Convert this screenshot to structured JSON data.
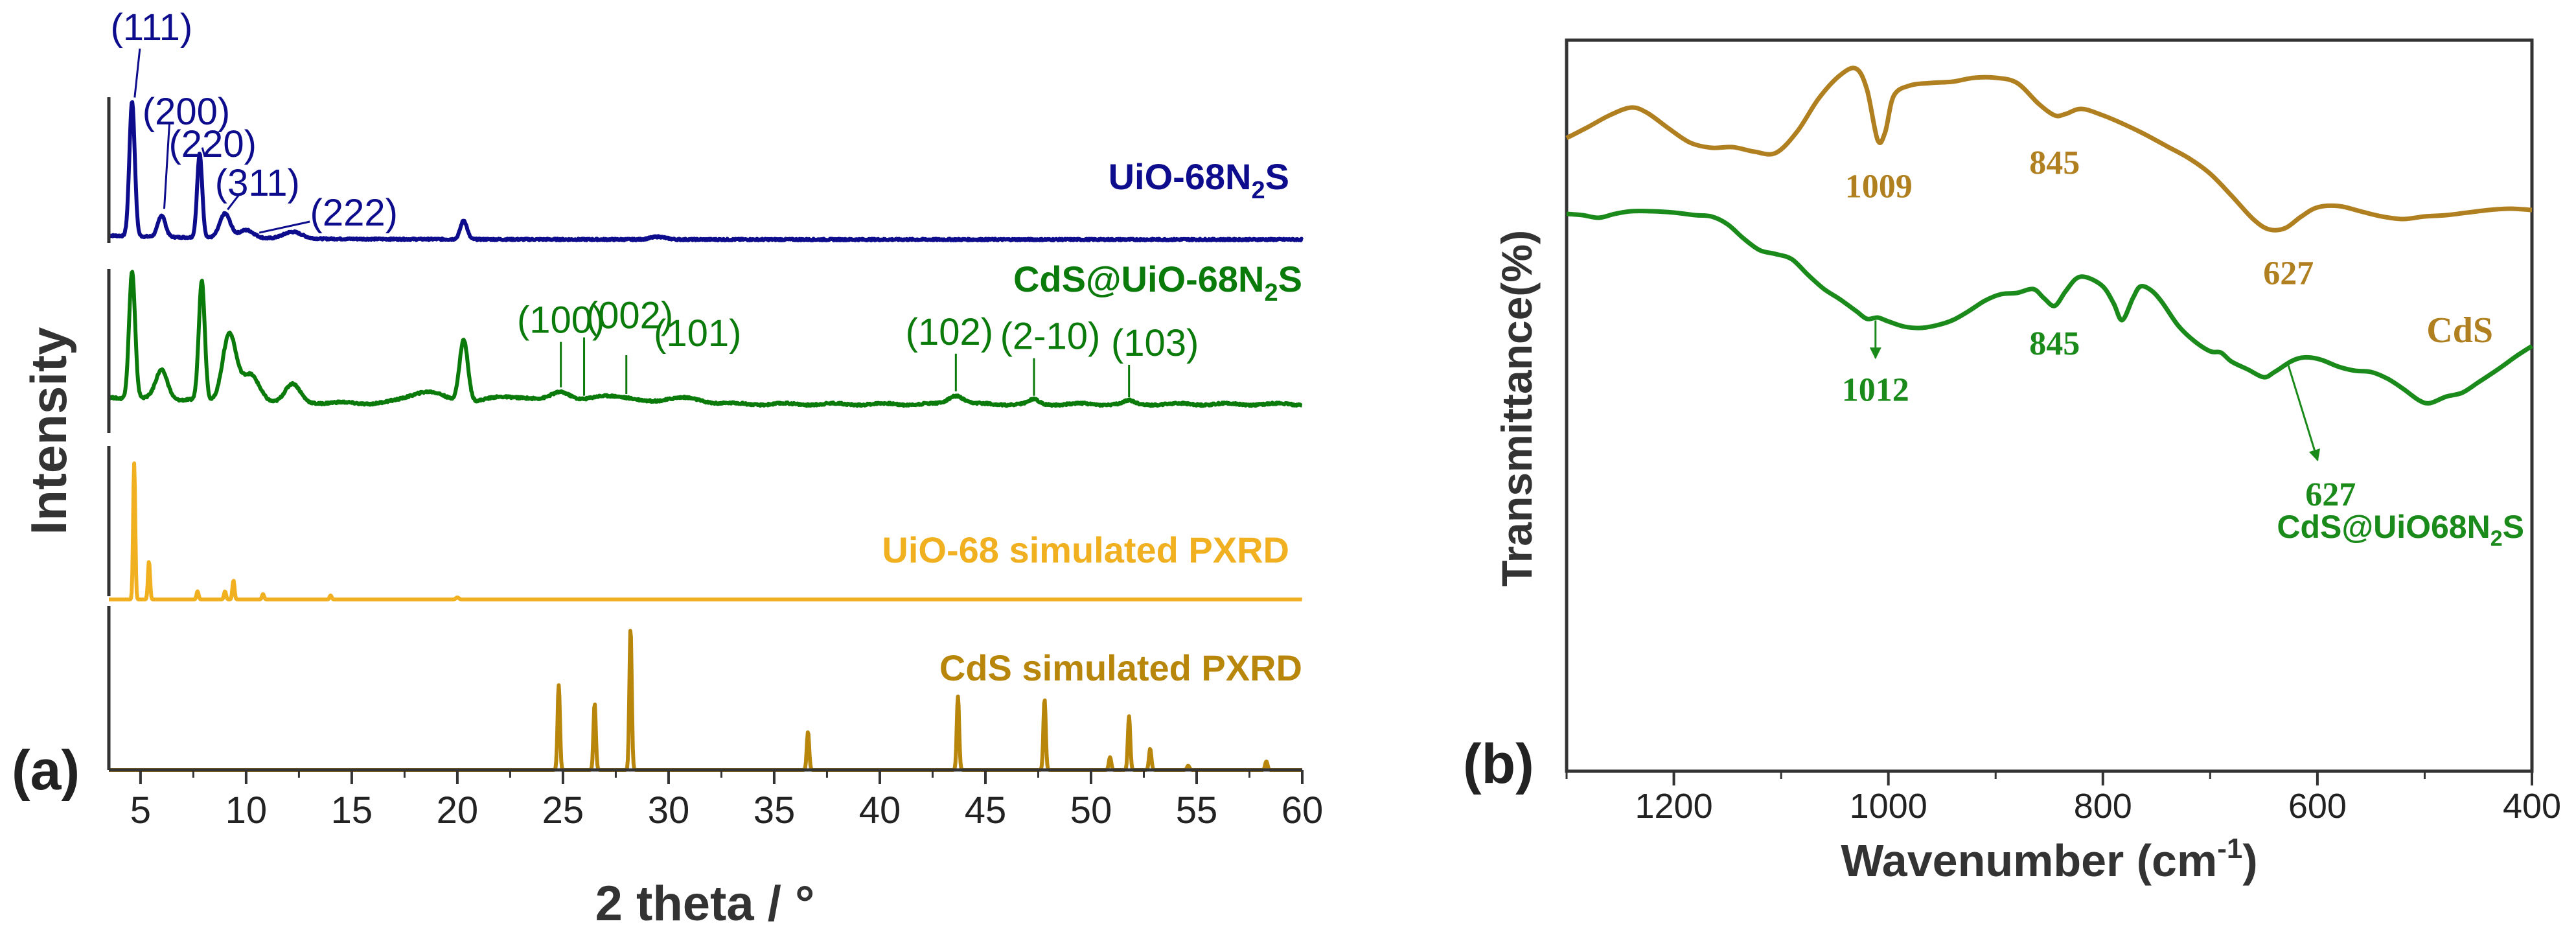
{
  "chart_data": [
    {
      "panel": "(a)",
      "type": "line",
      "xlabel": "2 theta / °",
      "ylabel": "Intensity",
      "xlim": [
        3.5,
        60
      ],
      "xticks": [
        5,
        10,
        15,
        20,
        25,
        30,
        35,
        40,
        45,
        50,
        55,
        60
      ],
      "xtick_labels": [
        "5",
        "10",
        "15",
        "20",
        "25",
        "30",
        "35",
        "40",
        "45",
        "50",
        "55",
        "60"
      ],
      "series": [
        {
          "name": "UiO-68N₂S",
          "label_main": "UiO-68N",
          "label_sub": "2",
          "label_tail": "S",
          "color": "#0c0c8c",
          "baseline": 0.05,
          "peaks": [
            [
              4.6,
              1.0,
              0.18
            ],
            [
              6.0,
              0.16,
              0.25
            ],
            [
              7.8,
              0.62,
              0.17
            ],
            [
              9.0,
              0.18,
              0.35
            ],
            [
              10.0,
              0.06,
              0.5
            ],
            [
              12.2,
              0.05,
              0.6
            ],
            [
              20.3,
              0.14,
              0.22
            ],
            [
              29.5,
              0.02,
              0.5
            ]
          ],
          "annotations": [
            {
              "text": "(111)",
              "x": 4.6
            },
            {
              "text": "(200)",
              "x": 6.0
            },
            {
              "text": "(220)",
              "x": 7.8
            },
            {
              "text": "(311)",
              "x": 9.0
            },
            {
              "text": "(222)",
              "x": 10.5
            }
          ]
        },
        {
          "name": "CdS@UiO-68N₂S",
          "label_main": "CdS@UiO-68N",
          "label_sub": "2",
          "label_tail": "S",
          "color": "#0a7a0a",
          "baseline": 0.08,
          "peaks": [
            [
              4.6,
              0.85,
              0.2
            ],
            [
              6.0,
              0.2,
              0.4
            ],
            [
              7.9,
              0.8,
              0.2
            ],
            [
              9.2,
              0.45,
              0.45
            ],
            [
              10.2,
              0.18,
              0.6
            ],
            [
              12.2,
              0.12,
              0.5
            ],
            [
              18.5,
              0.08,
              1.2
            ],
            [
              20.3,
              0.42,
              0.28
            ],
            [
              22.5,
              0.05,
              1.5
            ],
            [
              24.9,
              0.08,
              0.7
            ],
            [
              27.2,
              0.06,
              1.2
            ],
            [
              30.5,
              0.04,
              1.5
            ],
            [
              43.6,
              0.06,
              0.5
            ],
            [
              47.3,
              0.03,
              0.3
            ],
            [
              51.8,
              0.02,
              0.3
            ]
          ],
          "annotations": [
            {
              "text": "(100)",
              "x": 24.9
            },
            {
              "text": "(002)",
              "x": 26.0
            },
            {
              "text": "(101)",
              "x": 28.0
            },
            {
              "text": "(102)",
              "x": 43.6
            },
            {
              "text": "(2-10)",
              "x": 47.3
            },
            {
              "text": "(103)",
              "x": 51.8
            }
          ]
        },
        {
          "name": "UiO-68 simulated PXRD",
          "label_main": "UiO-68 simulated PXRD",
          "color": "#f0b020",
          "baseline": 0.0,
          "peaks": [
            [
              4.7,
              1.0,
              0.07
            ],
            [
              5.4,
              0.28,
              0.07
            ],
            [
              7.7,
              0.06,
              0.07
            ],
            [
              9.0,
              0.06,
              0.07
            ],
            [
              9.4,
              0.14,
              0.07
            ],
            [
              10.8,
              0.04,
              0.07
            ],
            [
              14.0,
              0.03,
              0.07
            ],
            [
              20.0,
              0.015,
              0.1
            ]
          ]
        },
        {
          "name": "CdS simulated PXRD",
          "label_main": "CdS simulated PXRD",
          "color": "#b8860b",
          "baseline": 0.0,
          "peaks": [
            [
              24.8,
              0.6,
              0.08
            ],
            [
              26.5,
              0.47,
              0.08
            ],
            [
              28.2,
              1.0,
              0.08
            ],
            [
              36.6,
              0.27,
              0.08
            ],
            [
              43.7,
              0.52,
              0.08
            ],
            [
              47.8,
              0.5,
              0.08
            ],
            [
              50.9,
              0.09,
              0.08
            ],
            [
              51.8,
              0.38,
              0.08
            ],
            [
              52.8,
              0.15,
              0.08
            ],
            [
              54.6,
              0.03,
              0.08
            ],
            [
              58.3,
              0.06,
              0.08
            ]
          ]
        }
      ]
    },
    {
      "panel": "(b)",
      "type": "line",
      "xlabel_main": "Wavenumber (cm",
      "xlabel_sup": "-1",
      "xlabel_tail": ")",
      "ylabel": "Transmittance(%)",
      "xlim": [
        1300,
        400
      ],
      "xticks": [
        1200,
        1000,
        800,
        600,
        400
      ],
      "xtick_labels": [
        "1200",
        "1000",
        "800",
        "600",
        "400"
      ],
      "series": [
        {
          "name": "CdS",
          "label_main": "CdS",
          "color": "#b08020",
          "points": [
            [
              1300,
              65
            ],
            [
              1280,
              82
            ],
            [
              1260,
              100
            ],
            [
              1240,
              112
            ],
            [
              1225,
              104
            ],
            [
              1205,
              80
            ],
            [
              1185,
              58
            ],
            [
              1165,
              50
            ],
            [
              1145,
              51
            ],
            [
              1125,
              44
            ],
            [
              1105,
              42
            ],
            [
              1085,
              75
            ],
            [
              1065,
              126
            ],
            [
              1045,
              162
            ],
            [
              1030,
              172
            ],
            [
              1020,
              140
            ],
            [
              1010,
              62
            ],
            [
              1003,
              74
            ],
            [
              995,
              130
            ],
            [
              980,
              146
            ],
            [
              960,
              150
            ],
            [
              940,
              152
            ],
            [
              920,
              158
            ],
            [
              900,
              158
            ],
            [
              880,
              150
            ],
            [
              860,
              118
            ],
            [
              845,
              100
            ],
            [
              835,
              102
            ],
            [
              820,
              110
            ],
            [
              800,
              100
            ],
            [
              780,
              86
            ],
            [
              760,
              70
            ],
            [
              740,
              52
            ],
            [
              720,
              34
            ],
            [
              700,
              10
            ],
            [
              680,
              -24
            ],
            [
              660,
              -60
            ],
            [
              645,
              -76
            ],
            [
              630,
              -74
            ],
            [
              615,
              -56
            ],
            [
              600,
              -42
            ],
            [
              580,
              -40
            ],
            [
              560,
              -48
            ],
            [
              540,
              -56
            ],
            [
              520,
              -60
            ],
            [
              500,
              -56
            ],
            [
              480,
              -54
            ],
            [
              460,
              -50
            ],
            [
              440,
              -46
            ],
            [
              420,
              -44
            ],
            [
              400,
              -46
            ]
          ],
          "annotations": [
            {
              "text": "1009",
              "x": 1009,
              "arrow": false
            },
            {
              "text": "845",
              "x": 845,
              "arrow": false
            },
            {
              "text": "627",
              "x": 627,
              "arrow": false
            }
          ]
        },
        {
          "name": "CdS@UiO68N₂S",
          "label_main": "CdS@UiO68N",
          "label_sub": "2",
          "label_tail": "S",
          "color": "#1a8a1a",
          "points": [
            [
              1300,
              0
            ],
            [
              1285,
              -2
            ],
            [
              1270,
              -6
            ],
            [
              1255,
              0
            ],
            [
              1240,
              4
            ],
            [
              1220,
              4
            ],
            [
              1200,
              2
            ],
            [
              1180,
              -2
            ],
            [
              1165,
              -4
            ],
            [
              1150,
              -16
            ],
            [
              1135,
              -38
            ],
            [
              1120,
              -56
            ],
            [
              1105,
              -62
            ],
            [
              1090,
              -70
            ],
            [
              1075,
              -94
            ],
            [
              1060,
              -116
            ],
            [
              1045,
              -132
            ],
            [
              1030,
              -150
            ],
            [
              1020,
              -162
            ],
            [
              1010,
              -160
            ],
            [
              1000,
              -166
            ],
            [
              985,
              -174
            ],
            [
              970,
              -176
            ],
            [
              955,
              -172
            ],
            [
              940,
              -164
            ],
            [
              925,
              -150
            ],
            [
              910,
              -134
            ],
            [
              895,
              -124
            ],
            [
              880,
              -122
            ],
            [
              865,
              -116
            ],
            [
              855,
              -130
            ],
            [
              845,
              -142
            ],
            [
              835,
              -120
            ],
            [
              825,
              -100
            ],
            [
              815,
              -98
            ],
            [
              800,
              -112
            ],
            [
              790,
              -138
            ],
            [
              782,
              -164
            ],
            [
              772,
              -130
            ],
            [
              765,
              -112
            ],
            [
              755,
              -118
            ],
            [
              745,
              -136
            ],
            [
              730,
              -172
            ],
            [
              715,
              -196
            ],
            [
              700,
              -212
            ],
            [
              690,
              -214
            ],
            [
              680,
              -228
            ],
            [
              665,
              -240
            ],
            [
              650,
              -252
            ],
            [
              640,
              -244
            ],
            [
              625,
              -228
            ],
            [
              615,
              -222
            ],
            [
              605,
              -222
            ],
            [
              595,
              -226
            ],
            [
              580,
              -236
            ],
            [
              565,
              -242
            ],
            [
              550,
              -244
            ],
            [
              535,
              -254
            ],
            [
              520,
              -270
            ],
            [
              505,
              -288
            ],
            [
              495,
              -292
            ],
            [
              480,
              -282
            ],
            [
              465,
              -276
            ],
            [
              450,
              -260
            ],
            [
              430,
              -238
            ],
            [
              415,
              -220
            ],
            [
              400,
              -204
            ]
          ],
          "annotations": [
            {
              "text": "1012",
              "x": 1012,
              "arrow": true
            },
            {
              "text": "845",
              "x": 845,
              "arrow": false
            },
            {
              "text": "627",
              "x": 627,
              "arrow": true
            }
          ]
        }
      ]
    }
  ]
}
